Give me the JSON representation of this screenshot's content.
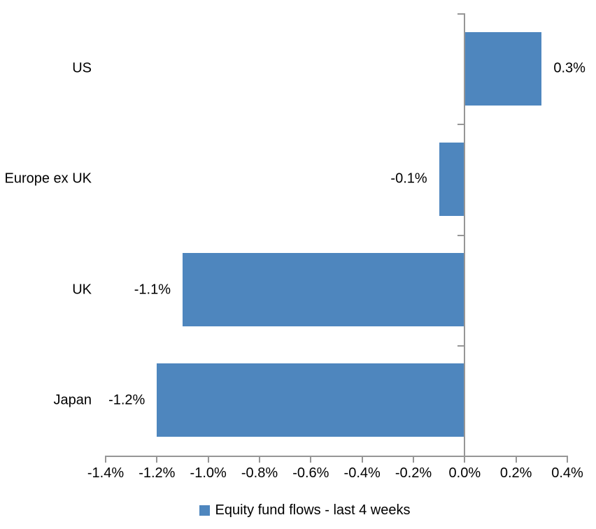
{
  "chart_data": {
    "type": "bar",
    "orientation": "horizontal",
    "categories": [
      "US",
      "Europe ex UK",
      "UK",
      "Japan"
    ],
    "values": [
      0.3,
      -0.1,
      -1.1,
      -1.2
    ],
    "data_labels": [
      "0.3%",
      "-0.1%",
      "-1.1%",
      "-1.2%"
    ],
    "series_name": "Equity fund flows - last 4 weeks",
    "xlim": [
      -1.4,
      0.4
    ],
    "x_tick_values": [
      -1.4,
      -1.2,
      -1.0,
      -0.8,
      -0.6,
      -0.4,
      -0.2,
      0.0,
      0.2,
      0.4
    ],
    "x_tick_labels": [
      "-1.4%",
      "-1.2%",
      "-1.0%",
      "-0.8%",
      "-0.6%",
      "-0.4%",
      "-0.2%",
      "0.0%",
      "0.2%",
      "0.4%"
    ],
    "grid": "off",
    "legend": {
      "position": "bottom",
      "entries": [
        "Equity fund flows - last 4 weeks"
      ]
    },
    "colors": {
      "bar": "#4E86BE",
      "axis": "#969696",
      "text": "#000000",
      "background": "#FFFFFF"
    }
  }
}
